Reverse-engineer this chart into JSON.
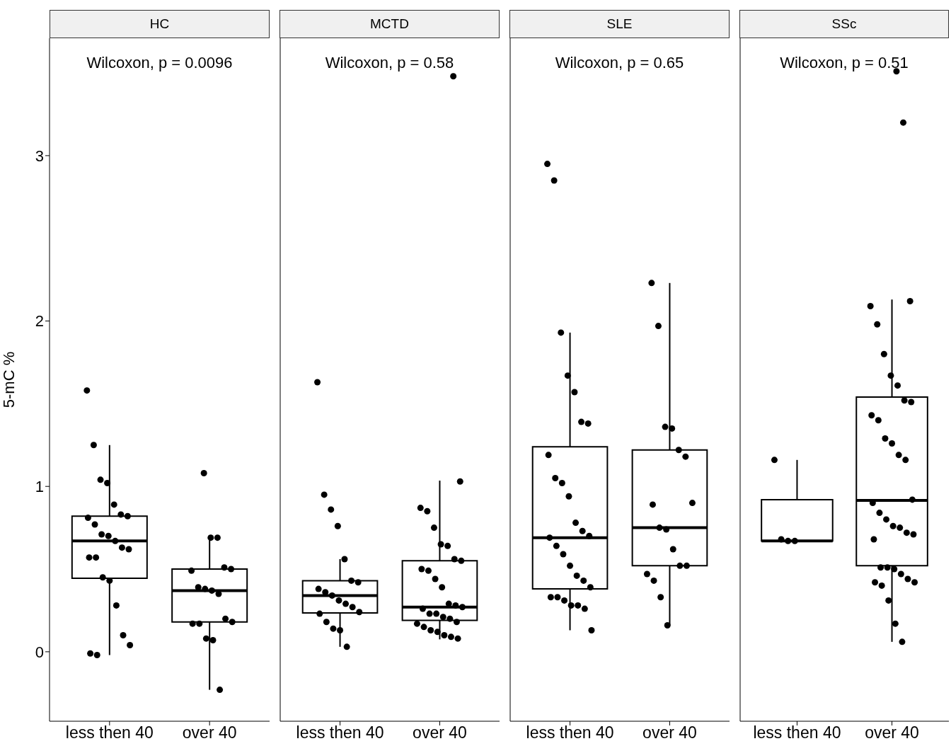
{
  "chart_data": [
    {
      "type": "box",
      "title": "HC",
      "ylabel": "5-mC %",
      "categories": [
        "less then 40",
        "over 40"
      ],
      "annotations": [
        "Wilcoxon, p = 0.0096"
      ],
      "ylim": [
        -0.42,
        3.71
      ],
      "yticks": [
        0,
        1,
        2,
        3
      ],
      "grid": false,
      "boxes": [
        {
          "low": -0.02,
          "q1": 0.445,
          "median": 0.67,
          "q3": 0.82,
          "high": 1.25
        },
        {
          "low": -0.23,
          "q1": 0.18,
          "median": 0.37,
          "q3": 0.5,
          "high": 0.69
        }
      ],
      "series": [
        {
          "type": "scatter",
          "color": "#000000",
          "x": [
            "less then 40",
            "less then 40",
            "less then 40",
            "less then 40",
            "less then 40",
            "less then 40",
            "less then 40",
            "less then 40",
            "less then 40",
            "less then 40",
            "less then 40",
            "less then 40",
            "less then 40",
            "less then 40",
            "less then 40",
            "less then 40",
            "less then 40",
            "less then 40",
            "less then 40",
            "less then 40",
            "less then 40",
            "less then 40",
            "less then 40",
            "over 40",
            "over 40",
            "over 40",
            "over 40",
            "over 40",
            "over 40",
            "over 40",
            "over 40",
            "over 40",
            "over 40",
            "over 40",
            "over 40",
            "over 40",
            "over 40",
            "over 40",
            "over 40",
            "over 40"
          ],
          "values": [
            1.58,
            1.25,
            1.04,
            1.02,
            0.89,
            0.83,
            0.82,
            0.81,
            0.77,
            0.71,
            0.7,
            0.67,
            0.63,
            0.62,
            0.57,
            0.57,
            0.45,
            0.43,
            0.28,
            0.1,
            0.04,
            -0.01,
            -0.02,
            1.08,
            0.69,
            0.69,
            0.51,
            0.5,
            0.49,
            0.39,
            0.38,
            0.37,
            0.35,
            0.2,
            0.18,
            0.17,
            0.17,
            0.08,
            0.07,
            -0.23
          ]
        }
      ]
    },
    {
      "type": "box",
      "title": "MCTD",
      "categories": [
        "less then 40",
        "over 40"
      ],
      "annotations": [
        "Wilcoxon, p = 0.58"
      ],
      "ylim": [
        -0.42,
        3.71
      ],
      "yticks": [
        0,
        1,
        2,
        3
      ],
      "tick_labels": "x",
      "grid": false,
      "boxes": [
        {
          "low": 0.03,
          "q1": 0.235,
          "median": 0.34,
          "q3": 0.43,
          "high": 0.56
        },
        {
          "low": 0.075,
          "q1": 0.19,
          "median": 0.27,
          "q3": 0.55,
          "high": 1.035
        }
      ],
      "series": [
        {
          "type": "scatter",
          "color": "#000000",
          "x": [
            "less then 40",
            "less then 40",
            "less then 40",
            "less then 40",
            "less then 40",
            "less then 40",
            "less then 40",
            "less then 40",
            "less then 40",
            "less then 40",
            "less then 40",
            "less then 40",
            "less then 40",
            "less then 40",
            "less then 40",
            "less then 40",
            "less then 40",
            "less then 40",
            "less then 40",
            "over 40",
            "over 40",
            "over 40",
            "over 40",
            "over 40",
            "over 40",
            "over 40",
            "over 40",
            "over 40",
            "over 40",
            "over 40",
            "over 40",
            "over 40",
            "over 40",
            "over 40",
            "over 40",
            "over 40",
            "over 40",
            "over 40",
            "over 40",
            "over 40",
            "over 40",
            "over 40",
            "over 40",
            "over 40",
            "over 40",
            "over 40",
            "over 40",
            "over 40"
          ],
          "values": [
            1.63,
            0.95,
            0.86,
            0.76,
            0.56,
            0.43,
            0.42,
            0.38,
            0.36,
            0.34,
            0.31,
            0.29,
            0.27,
            0.24,
            0.23,
            0.18,
            0.14,
            0.13,
            0.03,
            3.48,
            1.03,
            0.87,
            0.85,
            0.75,
            0.65,
            0.64,
            0.56,
            0.55,
            0.5,
            0.49,
            0.44,
            0.39,
            0.29,
            0.28,
            0.27,
            0.26,
            0.23,
            0.23,
            0.21,
            0.2,
            0.18,
            0.17,
            0.15,
            0.13,
            0.12,
            0.1,
            0.09,
            0.08
          ]
        }
      ]
    },
    {
      "type": "box",
      "title": "SLE",
      "categories": [
        "less then 40",
        "over 40"
      ],
      "annotations": [
        "Wilcoxon, p = 0.65"
      ],
      "ylim": [
        -0.42,
        3.71
      ],
      "yticks": [
        0,
        1,
        2,
        3
      ],
      "tick_labels": "x",
      "grid": false,
      "boxes": [
        {
          "low": 0.13,
          "q1": 0.38,
          "median": 0.69,
          "q3": 1.24,
          "high": 1.93
        },
        {
          "low": 0.16,
          "q1": 0.52,
          "median": 0.75,
          "q3": 1.22,
          "high": 2.23
        }
      ],
      "series": [
        {
          "type": "scatter",
          "color": "#000000",
          "x": [
            "less then 40",
            "less then 40",
            "less then 40",
            "less then 40",
            "less then 40",
            "less then 40",
            "less then 40",
            "less then 40",
            "less then 40",
            "less then 40",
            "less then 40",
            "less then 40",
            "less then 40",
            "less then 40",
            "less then 40",
            "less then 40",
            "less then 40",
            "less then 40",
            "less then 40",
            "less then 40",
            "less then 40",
            "less then 40",
            "less then 40",
            "less then 40",
            "less then 40",
            "less then 40",
            "less then 40",
            "less then 40",
            "over 40",
            "over 40",
            "over 40",
            "over 40",
            "over 40",
            "over 40",
            "over 40",
            "over 40",
            "over 40",
            "over 40",
            "over 40",
            "over 40",
            "over 40",
            "over 40",
            "over 40",
            "over 40",
            "over 40"
          ],
          "values": [
            2.95,
            2.85,
            1.93,
            1.67,
            1.57,
            1.39,
            1.38,
            1.19,
            1.05,
            1.02,
            0.94,
            0.78,
            0.73,
            0.7,
            0.69,
            0.64,
            0.59,
            0.52,
            0.46,
            0.43,
            0.39,
            0.33,
            0.33,
            0.31,
            0.28,
            0.28,
            0.26,
            0.13,
            2.23,
            1.97,
            1.36,
            1.35,
            1.22,
            1.18,
            0.9,
            0.89,
            0.75,
            0.74,
            0.62,
            0.52,
            0.52,
            0.47,
            0.43,
            0.33,
            0.16
          ]
        }
      ]
    },
    {
      "type": "box",
      "title": "SSc",
      "categories": [
        "less then 40",
        "over 40"
      ],
      "annotations": [
        "Wilcoxon, p = 0.51"
      ],
      "ylim": [
        -0.42,
        3.71
      ],
      "yticks": [
        0,
        1,
        2,
        3
      ],
      "tick_labels": "x",
      "grid": false,
      "boxes": [
        {
          "low": 0.67,
          "q1": 0.67,
          "median": 0.67,
          "q3": 0.92,
          "high": 1.16
        },
        {
          "low": 0.06,
          "q1": 0.52,
          "median": 0.915,
          "q3": 1.54,
          "high": 2.13
        }
      ],
      "series": [
        {
          "type": "scatter",
          "color": "#000000",
          "x": [
            "less then 40",
            "less then 40",
            "less then 40",
            "less then 40",
            "over 40",
            "over 40",
            "over 40",
            "over 40",
            "over 40",
            "over 40",
            "over 40",
            "over 40",
            "over 40",
            "over 40",
            "over 40",
            "over 40",
            "over 40",
            "over 40",
            "over 40",
            "over 40",
            "over 40",
            "over 40",
            "over 40",
            "over 40",
            "over 40",
            "over 40",
            "over 40",
            "over 40",
            "over 40",
            "over 40",
            "over 40",
            "over 40",
            "over 40",
            "over 40",
            "over 40",
            "over 40",
            "over 40",
            "over 40",
            "over 40",
            "over 40"
          ],
          "values": [
            1.16,
            0.68,
            0.67,
            0.67,
            3.51,
            3.2,
            2.12,
            2.09,
            1.98,
            1.8,
            1.67,
            1.61,
            1.52,
            1.51,
            1.43,
            1.4,
            1.29,
            1.26,
            1.19,
            1.16,
            0.92,
            0.9,
            0.84,
            0.8,
            0.76,
            0.75,
            0.72,
            0.71,
            0.68,
            0.51,
            0.51,
            0.5,
            0.47,
            0.44,
            0.42,
            0.42,
            0.4,
            0.31,
            0.17,
            0.06
          ]
        }
      ]
    }
  ]
}
